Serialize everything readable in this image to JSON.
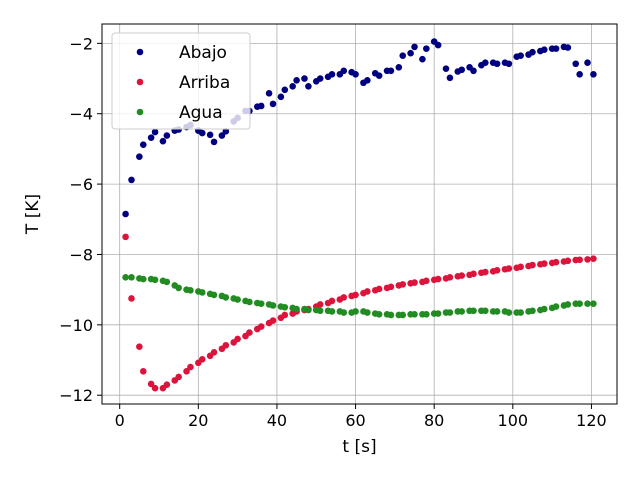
{
  "chart_data": {
    "type": "scatter",
    "xlabel": "t [s]",
    "ylabel": "T [K]",
    "xlim": [
      -4.5,
      126.5
    ],
    "ylim": [
      -12.25,
      -1.45
    ],
    "xticks": [
      0,
      20,
      40,
      60,
      80,
      100,
      120
    ],
    "yticks": [
      -12,
      -10,
      -8,
      -6,
      -4,
      -2
    ],
    "xtick_labels": [
      "0",
      "20",
      "40",
      "60",
      "80",
      "100",
      "120"
    ],
    "ytick_labels": [
      "−12",
      "−10",
      "−8",
      "−6",
      "−4",
      "−2"
    ],
    "grid": true,
    "legend_position": "top-left",
    "series": [
      {
        "name": "Abajo",
        "color": "#000080",
        "x": [
          1.5,
          3,
          5,
          6,
          8,
          9,
          11,
          12,
          14,
          15,
          17,
          18,
          20,
          21,
          23,
          24,
          26,
          27,
          29,
          30,
          32,
          33,
          35,
          36,
          38,
          39,
          41,
          42,
          44,
          45,
          47,
          48,
          50,
          51,
          53,
          54,
          56,
          57,
          59,
          60,
          62,
          63,
          65,
          66,
          68,
          69,
          71,
          72,
          74,
          75,
          77,
          78,
          80,
          81,
          83,
          84,
          86,
          87,
          89,
          90,
          92,
          93,
          95,
          96,
          98,
          99,
          101,
          102,
          104,
          105,
          107,
          108,
          110,
          111,
          113,
          114,
          116,
          117,
          119,
          120.5
        ],
        "y": [
          -6.85,
          -5.88,
          -5.22,
          -4.88,
          -4.68,
          -4.52,
          -4.78,
          -4.62,
          -4.48,
          -4.45,
          -4.38,
          -4.32,
          -4.48,
          -4.55,
          -4.6,
          -4.8,
          -4.62,
          -4.5,
          -4.22,
          -4.12,
          -3.92,
          -3.92,
          -3.8,
          -3.78,
          -3.42,
          -3.72,
          -3.52,
          -3.32,
          -3.22,
          -3.05,
          -3.0,
          -3.22,
          -3.08,
          -3.0,
          -2.95,
          -2.88,
          -2.88,
          -2.78,
          -2.82,
          -2.88,
          -3.12,
          -3.05,
          -2.85,
          -2.92,
          -2.78,
          -2.78,
          -2.68,
          -2.35,
          -2.28,
          -2.1,
          -2.45,
          -2.15,
          -1.95,
          -2.05,
          -2.72,
          -2.98,
          -2.8,
          -2.75,
          -2.68,
          -2.78,
          -2.62,
          -2.55,
          -2.55,
          -2.58,
          -2.55,
          -2.58,
          -2.38,
          -2.35,
          -2.32,
          -2.25,
          -2.22,
          -2.18,
          -2.15,
          -2.15,
          -2.1,
          -2.12,
          -2.58,
          -2.88,
          -2.55,
          -2.88
        ]
      },
      {
        "name": "Arriba",
        "color": "#dc143c",
        "x": [
          1.5,
          3,
          5,
          6,
          8,
          9,
          11,
          12,
          14,
          15,
          17,
          18,
          20,
          21,
          23,
          24,
          26,
          27,
          29,
          30,
          32,
          33,
          35,
          36,
          38,
          39,
          41,
          42,
          44,
          45,
          47,
          48,
          50,
          51,
          53,
          54,
          56,
          57,
          59,
          60,
          62,
          63,
          65,
          66,
          68,
          69,
          71,
          72,
          74,
          75,
          77,
          78,
          80,
          81,
          83,
          84,
          86,
          87,
          89,
          90,
          92,
          93,
          95,
          96,
          98,
          99,
          101,
          102,
          104,
          105,
          107,
          108,
          110,
          111,
          113,
          114,
          116,
          117,
          119,
          120.5
        ],
        "y": [
          -7.5,
          -9.25,
          -10.62,
          -11.32,
          -11.68,
          -11.8,
          -11.8,
          -11.7,
          -11.58,
          -11.48,
          -11.32,
          -11.2,
          -11.08,
          -10.98,
          -10.88,
          -10.78,
          -10.68,
          -10.58,
          -10.5,
          -10.4,
          -10.32,
          -10.22,
          -10.12,
          -10.05,
          -9.95,
          -9.88,
          -9.8,
          -9.72,
          -9.68,
          -9.62,
          -9.58,
          -9.55,
          -9.48,
          -9.42,
          -9.38,
          -9.32,
          -9.28,
          -9.22,
          -9.18,
          -9.15,
          -9.1,
          -9.05,
          -9.02,
          -8.98,
          -8.95,
          -8.92,
          -8.88,
          -8.85,
          -8.82,
          -8.8,
          -8.78,
          -8.75,
          -8.72,
          -8.7,
          -8.68,
          -8.65,
          -8.62,
          -8.6,
          -8.58,
          -8.55,
          -8.52,
          -8.5,
          -8.48,
          -8.45,
          -8.42,
          -8.4,
          -8.38,
          -8.35,
          -8.33,
          -8.3,
          -8.28,
          -8.26,
          -8.24,
          -8.22,
          -8.2,
          -8.18,
          -8.16,
          -8.15,
          -8.14,
          -8.12
        ]
      },
      {
        "name": "Agua",
        "color": "#228b22",
        "x": [
          1.5,
          3,
          5,
          6,
          8,
          9,
          11,
          12,
          14,
          15,
          17,
          18,
          20,
          21,
          23,
          24,
          26,
          27,
          29,
          30,
          32,
          33,
          35,
          36,
          38,
          39,
          41,
          42,
          44,
          45,
          47,
          48,
          50,
          51,
          53,
          54,
          56,
          57,
          59,
          60,
          62,
          63,
          65,
          66,
          68,
          69,
          71,
          72,
          74,
          75,
          77,
          78,
          80,
          81,
          83,
          84,
          86,
          87,
          89,
          90,
          92,
          93,
          95,
          96,
          98,
          99,
          101,
          102,
          104,
          105,
          107,
          108,
          110,
          111,
          113,
          114,
          116,
          117,
          119,
          120.5
        ],
        "y": [
          -8.65,
          -8.65,
          -8.68,
          -8.7,
          -8.7,
          -8.72,
          -8.75,
          -8.78,
          -8.88,
          -8.95,
          -9.0,
          -9.02,
          -9.05,
          -9.08,
          -9.12,
          -9.15,
          -9.18,
          -9.22,
          -9.25,
          -9.28,
          -9.32,
          -9.35,
          -9.38,
          -9.4,
          -9.42,
          -9.45,
          -9.48,
          -9.5,
          -9.52,
          -9.55,
          -9.55,
          -9.58,
          -9.58,
          -9.6,
          -9.6,
          -9.62,
          -9.62,
          -9.65,
          -9.65,
          -9.62,
          -9.62,
          -9.65,
          -9.68,
          -9.7,
          -9.7,
          -9.72,
          -9.72,
          -9.72,
          -9.7,
          -9.7,
          -9.7,
          -9.7,
          -9.68,
          -9.68,
          -9.65,
          -9.65,
          -9.62,
          -9.62,
          -9.6,
          -9.6,
          -9.6,
          -9.6,
          -9.62,
          -9.62,
          -9.62,
          -9.65,
          -9.65,
          -9.65,
          -9.62,
          -9.6,
          -9.58,
          -9.55,
          -9.52,
          -9.48,
          -9.45,
          -9.42,
          -9.4,
          -9.4,
          -9.4,
          -9.4
        ]
      }
    ]
  }
}
